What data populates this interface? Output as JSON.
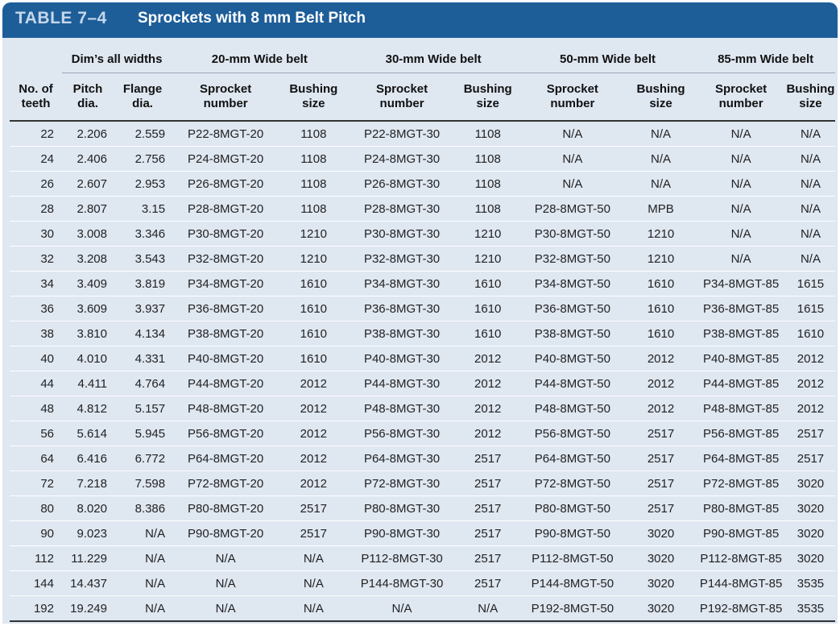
{
  "title": {
    "number": "TABLE 7–4",
    "text": "Sprockets with 8 mm Belt Pitch"
  },
  "groups": [
    "Dim’s all widths",
    "20-mm Wide belt",
    "30-mm Wide belt",
    "50-mm Wide belt",
    "85-mm Wide belt"
  ],
  "columns": [
    "No. of\nteeth",
    "Pitch\ndia.",
    "Flange\ndia.",
    "Sprocket\nnumber",
    "Bushing\nsize",
    "Sprocket\nnumber",
    "Bushing\nsize",
    "Sprocket\nnumber",
    "Bushing\nsize",
    "Sprocket\nnumber",
    "Bushing\nsize"
  ],
  "rows": [
    [
      "22",
      "2.206",
      "2.559",
      "P22-8MGT-20",
      "1108",
      "P22-8MGT-30",
      "1108",
      "N/A",
      "N/A",
      "N/A",
      "N/A"
    ],
    [
      "24",
      "2.406",
      "2.756",
      "P24-8MGT-20",
      "1108",
      "P24-8MGT-30",
      "1108",
      "N/A",
      "N/A",
      "N/A",
      "N/A"
    ],
    [
      "26",
      "2.607",
      "2.953",
      "P26-8MGT-20",
      "1108",
      "P26-8MGT-30",
      "1108",
      "N/A",
      "N/A",
      "N/A",
      "N/A"
    ],
    [
      "28",
      "2.807",
      "3.15",
      "P28-8MGT-20",
      "1108",
      "P28-8MGT-30",
      "1108",
      "P28-8MGT-50",
      "MPB",
      "N/A",
      "N/A"
    ],
    [
      "30",
      "3.008",
      "3.346",
      "P30-8MGT-20",
      "1210",
      "P30-8MGT-30",
      "1210",
      "P30-8MGT-50",
      "1210",
      "N/A",
      "N/A"
    ],
    [
      "32",
      "3.208",
      "3.543",
      "P32-8MGT-20",
      "1210",
      "P32-8MGT-30",
      "1210",
      "P32-8MGT-50",
      "1210",
      "N/A",
      "N/A"
    ],
    [
      "34",
      "3.409",
      "3.819",
      "P34-8MGT-20",
      "1610",
      "P34-8MGT-30",
      "1610",
      "P34-8MGT-50",
      "1610",
      "P34-8MGT-85",
      "1615"
    ],
    [
      "36",
      "3.609",
      "3.937",
      "P36-8MGT-20",
      "1610",
      "P36-8MGT-30",
      "1610",
      "P36-8MGT-50",
      "1610",
      "P36-8MGT-85",
      "1615"
    ],
    [
      "38",
      "3.810",
      "4.134",
      "P38-8MGT-20",
      "1610",
      "P38-8MGT-30",
      "1610",
      "P38-8MGT-50",
      "1610",
      "P38-8MGT-85",
      "1610"
    ],
    [
      "40",
      "4.010",
      "4.331",
      "P40-8MGT-20",
      "1610",
      "P40-8MGT-30",
      "2012",
      "P40-8MGT-50",
      "2012",
      "P40-8MGT-85",
      "2012"
    ],
    [
      "44",
      "4.411",
      "4.764",
      "P44-8MGT-20",
      "2012",
      "P44-8MGT-30",
      "2012",
      "P44-8MGT-50",
      "2012",
      "P44-8MGT-85",
      "2012"
    ],
    [
      "48",
      "4.812",
      "5.157",
      "P48-8MGT-20",
      "2012",
      "P48-8MGT-30",
      "2012",
      "P48-8MGT-50",
      "2012",
      "P48-8MGT-85",
      "2012"
    ],
    [
      "56",
      "5.614",
      "5.945",
      "P56-8MGT-20",
      "2012",
      "P56-8MGT-30",
      "2012",
      "P56-8MGT-50",
      "2517",
      "P56-8MGT-85",
      "2517"
    ],
    [
      "64",
      "6.416",
      "6.772",
      "P64-8MGT-20",
      "2012",
      "P64-8MGT-30",
      "2517",
      "P64-8MGT-50",
      "2517",
      "P64-8MGT-85",
      "2517"
    ],
    [
      "72",
      "7.218",
      "7.598",
      "P72-8MGT-20",
      "2012",
      "P72-8MGT-30",
      "2517",
      "P72-8MGT-50",
      "2517",
      "P72-8MGT-85",
      "3020"
    ],
    [
      "80",
      "8.020",
      "8.386",
      "P80-8MGT-20",
      "2517",
      "P80-8MGT-30",
      "2517",
      "P80-8MGT-50",
      "2517",
      "P80-8MGT-85",
      "3020"
    ],
    [
      "90",
      "9.023",
      "N/A",
      "P90-8MGT-20",
      "2517",
      "P90-8MGT-30",
      "2517",
      "P90-8MGT-50",
      "3020",
      "P90-8MGT-85",
      "3020"
    ],
    [
      "112",
      "11.229",
      "N/A",
      "N/A",
      "N/A",
      "P112-8MGT-30",
      "2517",
      "P112-8MGT-50",
      "3020",
      "P112-8MGT-85",
      "3020"
    ],
    [
      "144",
      "14.437",
      "N/A",
      "N/A",
      "N/A",
      "P144-8MGT-30",
      "2517",
      "P144-8MGT-50",
      "3020",
      "P144-8MGT-85",
      "3535"
    ],
    [
      "192",
      "19.249",
      "N/A",
      "N/A",
      "N/A",
      "N/A",
      "N/A",
      "P192-8MGT-50",
      "3020",
      "P192-8MGT-85",
      "3535"
    ]
  ]
}
